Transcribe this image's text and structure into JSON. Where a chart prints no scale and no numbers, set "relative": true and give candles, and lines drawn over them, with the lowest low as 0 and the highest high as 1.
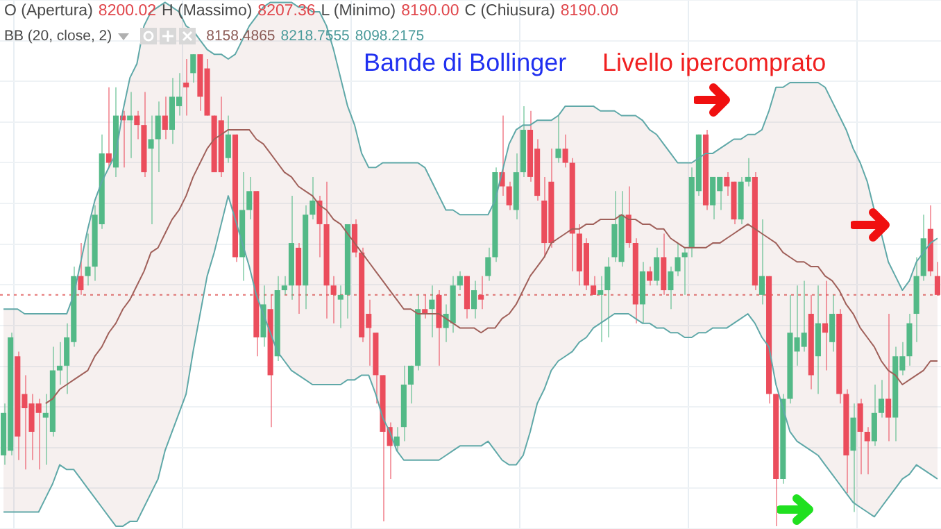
{
  "chart_data": {
    "type": "candlestick",
    "relative": true,
    "grid": true,
    "marker": "none",
    "categories": [
      null,
      null,
      null,
      null,
      null,
      null,
      null,
      null,
      null,
      null,
      null,
      null,
      null,
      null,
      null,
      null,
      null,
      null,
      null,
      null,
      null,
      null,
      null,
      null,
      null,
      null,
      null,
      null,
      null,
      null,
      null,
      null,
      null,
      null,
      null,
      null,
      null,
      null,
      null,
      null,
      null,
      null,
      null,
      null,
      null,
      null,
      null,
      null,
      null,
      null,
      null,
      null,
      null,
      null,
      null,
      null,
      null,
      null,
      null,
      null,
      null,
      null,
      null,
      null,
      null,
      null,
      null,
      null,
      null,
      null,
      null,
      null,
      null,
      null,
      null,
      null,
      null,
      null,
      null,
      null,
      null,
      null,
      null,
      null,
      null,
      null,
      null,
      null,
      null,
      null,
      null,
      null,
      null,
      null,
      null,
      null,
      null,
      null,
      null,
      null,
      null,
      null,
      null,
      null,
      null,
      null,
      null,
      null,
      null,
      null,
      null,
      null,
      null,
      null,
      null,
      null,
      null,
      null,
      null,
      null,
      null,
      null,
      null,
      null,
      null,
      null,
      null,
      null,
      null,
      null,
      null,
      null,
      null,
      null
    ],
    "ohlc": [
      [
        0.15,
        0.26,
        0.13,
        0.24
      ],
      [
        0.16,
        0.41,
        0.15,
        0.4
      ],
      [
        0.36,
        0.37,
        0.14,
        0.19
      ],
      [
        0.28,
        0.32,
        0.12,
        0.25
      ],
      [
        0.26,
        0.28,
        0.14,
        0.2
      ],
      [
        0.26,
        0.27,
        0.12,
        0.24
      ],
      [
        0.23,
        0.28,
        0.13,
        0.24
      ],
      [
        0.2,
        0.38,
        0.19,
        0.33
      ],
      [
        0.33,
        0.39,
        0.3,
        0.34
      ],
      [
        0.34,
        0.43,
        0.28,
        0.4
      ],
      [
        0.39,
        0.55,
        0.38,
        0.53
      ],
      [
        0.53,
        0.6,
        0.49,
        0.5
      ],
      [
        0.53,
        0.62,
        0.51,
        0.55
      ],
      [
        0.55,
        0.68,
        0.52,
        0.66
      ],
      [
        0.64,
        0.83,
        0.63,
        0.79
      ],
      [
        0.79,
        0.93,
        0.76,
        0.77
      ],
      [
        0.76,
        0.93,
        0.74,
        0.87
      ],
      [
        0.87,
        0.88,
        0.76,
        0.86
      ],
      [
        0.86,
        0.92,
        0.78,
        0.87
      ],
      [
        0.87,
        0.88,
        0.82,
        0.85
      ],
      [
        0.85,
        0.92,
        0.74,
        0.75
      ],
      [
        0.8,
        0.87,
        0.64,
        0.82
      ],
      [
        0.82,
        0.9,
        0.75,
        0.87
      ],
      [
        0.87,
        0.91,
        0.82,
        0.84
      ],
      [
        0.84,
        0.95,
        0.81,
        0.91
      ],
      [
        0.89,
        0.96,
        0.87,
        0.91
      ],
      [
        0.94,
        0.99,
        0.87,
        0.93
      ],
      [
        0.96,
        1.0,
        0.94,
        1.0
      ],
      [
        1.0,
        1.0,
        0.88,
        0.91
      ],
      [
        0.97,
        0.99,
        0.87,
        0.87
      ],
      [
        0.87,
        0.87,
        0.75,
        0.75
      ],
      [
        0.86,
        0.91,
        0.74,
        0.75
      ],
      [
        0.78,
        0.87,
        0.77,
        0.83
      ],
      [
        0.83,
        0.83,
        0.56,
        0.57
      ],
      [
        0.57,
        0.75,
        0.52,
        0.67
      ],
      [
        0.67,
        0.74,
        0.65,
        0.71
      ],
      [
        0.71,
        0.71,
        0.36,
        0.4
      ],
      [
        0.4,
        0.51,
        0.38,
        0.47
      ],
      [
        0.46,
        0.49,
        0.21,
        0.32
      ],
      [
        0.36,
        0.53,
        0.35,
        0.5
      ],
      [
        0.5,
        0.53,
        0.49,
        0.51
      ],
      [
        0.51,
        0.7,
        0.48,
        0.6
      ],
      [
        0.59,
        0.6,
        0.45,
        0.51
      ],
      [
        0.51,
        0.68,
        0.46,
        0.66
      ],
      [
        0.66,
        0.74,
        0.65,
        0.69
      ],
      [
        0.69,
        0.7,
        0.57,
        0.64
      ],
      [
        0.64,
        0.73,
        0.44,
        0.51
      ],
      [
        0.51,
        0.53,
        0.43,
        0.49
      ],
      [
        0.48,
        0.51,
        0.42,
        0.49
      ],
      [
        0.49,
        0.64,
        0.44,
        0.64
      ],
      [
        0.64,
        0.65,
        0.57,
        0.58
      ],
      [
        0.58,
        0.59,
        0.39,
        0.4
      ],
      [
        0.45,
        0.48,
        0.34,
        0.42
      ],
      [
        0.41,
        0.41,
        0.26,
        0.32
      ],
      [
        0.32,
        0.32,
        0.01,
        0.2
      ],
      [
        0.21,
        0.22,
        0.1,
        0.17
      ],
      [
        0.17,
        0.21,
        0.16,
        0.19
      ],
      [
        0.21,
        0.34,
        0.18,
        0.3
      ],
      [
        0.3,
        0.34,
        0.26,
        0.34
      ],
      [
        0.34,
        0.49,
        0.33,
        0.46
      ],
      [
        0.46,
        0.49,
        0.44,
        0.45
      ],
      [
        0.46,
        0.51,
        0.4,
        0.48
      ],
      [
        0.49,
        0.5,
        0.34,
        0.42
      ],
      [
        0.42,
        0.47,
        0.39,
        0.45
      ],
      [
        0.43,
        0.53,
        0.41,
        0.51
      ],
      [
        0.51,
        0.54,
        0.5,
        0.53
      ],
      [
        0.53,
        0.53,
        0.44,
        0.46
      ],
      [
        0.46,
        0.52,
        0.44,
        0.5
      ],
      [
        0.49,
        0.53,
        0.46,
        0.48
      ],
      [
        0.53,
        0.59,
        0.52,
        0.57
      ],
      [
        0.57,
        0.76,
        0.56,
        0.75
      ],
      [
        0.75,
        0.87,
        0.7,
        0.72
      ],
      [
        0.72,
        0.73,
        0.67,
        0.68
      ],
      [
        0.67,
        0.79,
        0.65,
        0.75
      ],
      [
        0.75,
        0.89,
        0.74,
        0.84
      ],
      [
        0.84,
        0.88,
        0.73,
        0.74
      ],
      [
        0.8,
        0.82,
        0.69,
        0.7
      ],
      [
        0.69,
        0.74,
        0.57,
        0.6
      ],
      [
        0.73,
        0.8,
        0.59,
        0.6
      ],
      [
        0.78,
        0.87,
        0.77,
        0.8
      ],
      [
        0.8,
        0.83,
        0.76,
        0.77
      ],
      [
        0.77,
        0.78,
        0.54,
        0.62
      ],
      [
        0.62,
        0.64,
        0.51,
        0.54
      ],
      [
        0.6,
        0.61,
        0.5,
        0.51
      ],
      [
        0.51,
        0.53,
        0.49,
        0.49
      ],
      [
        0.49,
        0.53,
        0.39,
        0.5
      ],
      [
        0.5,
        0.57,
        0.4,
        0.55
      ],
      [
        0.57,
        0.71,
        0.56,
        0.64
      ],
      [
        0.56,
        0.71,
        0.55,
        0.66
      ],
      [
        0.66,
        0.72,
        0.59,
        0.6
      ],
      [
        0.6,
        0.61,
        0.43,
        0.47
      ],
      [
        0.47,
        0.56,
        0.43,
        0.54
      ],
      [
        0.54,
        0.55,
        0.51,
        0.52
      ],
      [
        0.52,
        0.59,
        0.51,
        0.57
      ],
      [
        0.57,
        0.62,
        0.49,
        0.5
      ],
      [
        0.5,
        0.55,
        0.46,
        0.54
      ],
      [
        0.54,
        0.6,
        0.53,
        0.57
      ],
      [
        0.57,
        0.59,
        0.49,
        0.58
      ],
      [
        0.59,
        0.76,
        0.57,
        0.74
      ],
      [
        0.71,
        0.83,
        0.7,
        0.83
      ],
      [
        0.83,
        0.84,
        0.67,
        0.68
      ],
      [
        0.68,
        0.74,
        0.65,
        0.74
      ],
      [
        0.71,
        0.74,
        0.67,
        0.74
      ],
      [
        0.74,
        0.75,
        0.7,
        0.72
      ],
      [
        0.73,
        0.73,
        0.64,
        0.65
      ],
      [
        0.65,
        0.74,
        0.64,
        0.73
      ],
      [
        0.73,
        0.78,
        0.72,
        0.74
      ],
      [
        0.74,
        0.75,
        0.5,
        0.51
      ],
      [
        0.49,
        0.65,
        0.47,
        0.53
      ],
      [
        0.53,
        0.53,
        0.26,
        0.28
      ],
      [
        0.28,
        0.28,
        0.0,
        0.1
      ],
      [
        0.1,
        0.28,
        0.09,
        0.27
      ],
      [
        0.27,
        0.49,
        0.26,
        0.41
      ],
      [
        0.37,
        0.51,
        0.34,
        0.4
      ],
      [
        0.38,
        0.52,
        0.37,
        0.41
      ],
      [
        0.45,
        0.49,
        0.29,
        0.32
      ],
      [
        0.36,
        0.51,
        0.28,
        0.43
      ],
      [
        0.43,
        0.52,
        0.33,
        0.41
      ],
      [
        0.39,
        0.49,
        0.37,
        0.45
      ],
      [
        0.45,
        0.46,
        0.26,
        0.28
      ],
      [
        0.28,
        0.29,
        0.07,
        0.15
      ],
      [
        0.16,
        0.26,
        0.03,
        0.23
      ],
      [
        0.26,
        0.27,
        0.11,
        0.2
      ],
      [
        0.2,
        0.21,
        0.11,
        0.18
      ],
      [
        0.18,
        0.3,
        0.17,
        0.24
      ],
      [
        0.24,
        0.31,
        0.23,
        0.27
      ],
      [
        0.27,
        0.45,
        0.18,
        0.23
      ],
      [
        0.23,
        0.38,
        0.18,
        0.36
      ],
      [
        0.33,
        0.39,
        0.32,
        0.36
      ],
      [
        0.36,
        0.45,
        0.34,
        0.43
      ],
      [
        0.45,
        0.57,
        0.39,
        0.53
      ],
      [
        0.53,
        0.66,
        0.52,
        0.61
      ],
      [
        0.63,
        0.68,
        0.53,
        0.54
      ],
      [
        0.53,
        0.56,
        0.49,
        0.49
      ]
    ],
    "colors": [
      "#53b987",
      "#53b987",
      "#eb4d5c",
      "#eb4d5c",
      "#eb4d5c",
      "#eb4d5c",
      "#53b987",
      "#53b987",
      "#53b987",
      "#53b987",
      "#53b987",
      "#eb4d5c",
      "#53b987",
      "#53b987",
      "#53b987",
      "#eb4d5c",
      "#53b987",
      "#eb4d5c",
      "#53b987",
      "#eb4d5c",
      "#eb4d5c",
      "#53b987",
      "#53b987",
      "#eb4d5c",
      "#53b987",
      "#53b987",
      "#eb4d5c",
      "#53b987",
      "#eb4d5c",
      "#eb4d5c",
      "#eb4d5c",
      "#eb4d5c",
      "#53b987",
      "#eb4d5c",
      "#53b987",
      "#53b987",
      "#eb4d5c",
      "#53b987",
      "#eb4d5c",
      "#53b987",
      "#53b987",
      "#53b987",
      "#eb4d5c",
      "#53b987",
      "#53b987",
      "#eb4d5c",
      "#eb4d5c",
      "#eb4d5c",
      "#53b987",
      "#53b987",
      "#eb4d5c",
      "#eb4d5c",
      "#eb4d5c",
      "#eb4d5c",
      "#eb4d5c",
      "#eb4d5c",
      "#53b987",
      "#53b987",
      "#53b987",
      "#53b987",
      "#eb4d5c",
      "#53b987",
      "#eb4d5c",
      "#53b987",
      "#53b987",
      "#53b987",
      "#eb4d5c",
      "#53b987",
      "#eb4d5c",
      "#53b987",
      "#53b987",
      "#eb4d5c",
      "#eb4d5c",
      "#53b987",
      "#53b987",
      "#eb4d5c",
      "#eb4d5c",
      "#eb4d5c",
      "#eb4d5c",
      "#53b987",
      "#eb4d5c",
      "#eb4d5c",
      "#eb4d5c",
      "#eb4d5c",
      "#eb4d5c",
      "#53b987",
      "#53b987",
      "#53b987",
      "#53b987",
      "#eb4d5c",
      "#eb4d5c",
      "#53b987",
      "#eb4d5c",
      "#53b987",
      "#eb4d5c",
      "#53b987",
      "#53b987",
      "#53b987",
      "#53b987",
      "#53b987",
      "#eb4d5c",
      "#53b987",
      "#53b987",
      "#eb4d5c",
      "#eb4d5c",
      "#53b987",
      "#53b987",
      "#eb4d5c",
      "#53b987",
      "#eb4d5c",
      "#eb4d5c",
      "#53b987",
      "#53b987",
      "#53b987",
      "#53b987",
      "#eb4d5c",
      "#53b987",
      "#eb4d5c",
      "#53b987",
      "#eb4d5c",
      "#eb4d5c",
      "#53b987",
      "#eb4d5c",
      "#eb4d5c",
      "#53b987",
      "#53b987",
      "#eb4d5c",
      "#53b987",
      "#53b987",
      "#53b987",
      "#53b987",
      "#53b987",
      "#eb4d5c",
      "#eb4d5c"
    ],
    "series": [
      {
        "type": "line",
        "color": "#a0605a",
        "values": [
          null,
          null,
          null,
          null,
          null,
          null,
          0.26,
          0.27,
          0.29,
          0.3,
          0.31,
          0.32,
          0.33,
          0.36,
          0.38,
          0.41,
          0.43,
          0.46,
          0.48,
          0.51,
          0.54,
          0.58,
          0.59,
          0.62,
          0.65,
          0.67,
          0.7,
          0.74,
          0.77,
          0.8,
          0.82,
          0.83,
          0.84,
          0.84,
          0.84,
          0.84,
          0.82,
          0.81,
          0.79,
          0.77,
          0.75,
          0.74,
          0.72,
          0.71,
          0.7,
          0.68,
          0.67,
          0.65,
          0.64,
          0.62,
          0.6,
          0.58,
          0.56,
          0.54,
          0.52,
          0.5,
          0.48,
          0.46,
          0.46,
          0.45,
          0.45,
          0.45,
          0.45,
          0.44,
          0.43,
          0.42,
          0.42,
          0.42,
          0.41,
          0.42,
          0.42,
          0.44,
          0.45,
          0.47,
          0.5,
          0.53,
          0.55,
          0.57,
          0.6,
          0.61,
          0.62,
          0.63,
          0.63,
          0.64,
          0.64,
          0.65,
          0.65,
          0.65,
          0.66,
          0.65,
          0.65,
          0.64,
          0.64,
          0.63,
          0.63,
          0.61,
          0.6,
          0.59,
          0.59,
          0.59,
          0.59,
          0.6,
          0.6,
          0.61,
          0.62,
          0.63,
          0.64,
          0.63,
          0.62,
          0.61,
          0.6,
          0.58,
          0.57,
          0.56,
          0.56,
          0.55,
          0.55,
          0.53,
          0.52,
          0.5,
          0.47,
          0.45,
          0.42,
          0.4,
          0.38,
          0.35,
          0.33,
          0.32,
          0.3,
          0.31,
          0.32,
          0.33,
          0.35,
          0.35
        ],
        "lower": [
          0.03,
          0.03,
          0.03,
          0.03,
          0.03,
          0.03,
          0.06,
          0.09,
          0.13,
          0.12,
          0.12,
          0.1,
          0.08,
          0.06,
          0.04,
          0.02,
          0.0,
          0.0,
          0.01,
          0.01,
          0.04,
          0.07,
          0.1,
          0.16,
          0.2,
          0.24,
          0.28,
          0.37,
          0.45,
          0.53,
          0.58,
          0.64,
          0.7,
          0.65,
          0.6,
          0.55,
          0.49,
          0.45,
          0.41,
          0.37,
          0.35,
          0.33,
          0.32,
          0.31,
          0.3,
          0.3,
          0.3,
          0.3,
          0.3,
          0.31,
          0.31,
          0.32,
          0.32,
          0.28,
          0.23,
          0.2,
          0.16,
          0.14,
          0.14,
          0.14,
          0.14,
          0.14,
          0.14,
          0.15,
          0.16,
          0.17,
          0.17,
          0.17,
          0.17,
          0.18,
          0.16,
          0.14,
          0.13,
          0.13,
          0.15,
          0.2,
          0.26,
          0.29,
          0.33,
          0.35,
          0.36,
          0.37,
          0.39,
          0.4,
          0.42,
          0.43,
          0.44,
          0.45,
          0.45,
          0.45,
          0.44,
          0.43,
          0.43,
          0.42,
          0.42,
          0.41,
          0.41,
          0.4,
          0.4,
          0.41,
          0.41,
          0.42,
          0.42,
          0.42,
          0.43,
          0.44,
          0.45,
          0.43,
          0.4,
          0.38,
          0.3,
          0.25,
          0.2,
          0.18,
          0.17,
          0.16,
          0.15,
          0.13,
          0.11,
          0.09,
          0.07,
          0.05,
          0.04,
          0.03,
          0.02,
          0.04,
          0.06,
          0.08,
          0.1,
          0.11,
          0.13,
          0.12,
          0.11,
          0.1
        ],
        "upper": [
          0.46,
          0.46,
          0.46,
          0.45,
          0.45,
          0.45,
          0.45,
          0.45,
          0.45,
          0.45,
          0.49,
          0.56,
          0.63,
          0.69,
          0.73,
          0.76,
          0.79,
          0.88,
          0.95,
          0.98,
          1.06,
          1.09,
          1.1,
          1.11,
          1.1,
          1.09,
          1.06,
          1.05,
          1.03,
          1.01,
          1.0,
          1.0,
          0.99,
          1.0,
          1.03,
          1.06,
          1.08,
          1.1,
          1.11,
          1.11,
          1.11,
          1.11,
          1.1,
          1.1,
          1.09,
          1.09,
          1.06,
          1.01,
          0.95,
          0.89,
          0.85,
          0.79,
          0.76,
          0.76,
          0.77,
          0.77,
          0.77,
          0.77,
          0.77,
          0.77,
          0.76,
          0.73,
          0.7,
          0.67,
          0.67,
          0.66,
          0.66,
          0.66,
          0.66,
          0.66,
          0.69,
          0.75,
          0.81,
          0.84,
          0.85,
          0.85,
          0.86,
          0.86,
          0.86,
          0.87,
          0.89,
          0.89,
          0.89,
          0.89,
          0.89,
          0.88,
          0.88,
          0.88,
          0.87,
          0.87,
          0.87,
          0.86,
          0.84,
          0.83,
          0.81,
          0.79,
          0.77,
          0.77,
          0.77,
          0.78,
          0.79,
          0.79,
          0.8,
          0.81,
          0.82,
          0.82,
          0.83,
          0.83,
          0.84,
          0.88,
          0.93,
          0.93,
          0.94,
          0.94,
          0.94,
          0.94,
          0.94,
          0.93,
          0.9,
          0.87,
          0.84,
          0.8,
          0.77,
          0.73,
          0.67,
          0.62,
          0.56,
          0.53,
          0.5,
          0.52,
          0.56,
          0.58,
          0.6,
          0.61
        ]
      },
      {
        "type": "line",
        "color": "#5fa8a8",
        "values": [
          0.03,
          0.03,
          0.03,
          0.03,
          0.03,
          0.03,
          0.06,
          0.09,
          0.13,
          0.12,
          0.12,
          0.1,
          0.08,
          0.06,
          0.04,
          0.02,
          0.0,
          0.0,
          0.01,
          0.01,
          0.04,
          0.07,
          0.1,
          0.16,
          0.2,
          0.24,
          0.28,
          0.37,
          0.45,
          0.53,
          0.58,
          0.64,
          0.7,
          0.65,
          0.6,
          0.55,
          0.49,
          0.45,
          0.41,
          0.37,
          0.35,
          0.33,
          0.32,
          0.31,
          0.3,
          0.3,
          0.3,
          0.3,
          0.3,
          0.31,
          0.31,
          0.32,
          0.32,
          0.28,
          0.23,
          0.2,
          0.16,
          0.14,
          0.14,
          0.14,
          0.14,
          0.14,
          0.14,
          0.15,
          0.16,
          0.17,
          0.17,
          0.17,
          0.17,
          0.18,
          0.16,
          0.14,
          0.13,
          0.13,
          0.15,
          0.2,
          0.26,
          0.29,
          0.33,
          0.35,
          0.36,
          0.37,
          0.39,
          0.4,
          0.42,
          0.43,
          0.44,
          0.45,
          0.45,
          0.45,
          0.44,
          0.43,
          0.43,
          0.42,
          0.42,
          0.41,
          0.41,
          0.4,
          0.4,
          0.41,
          0.41,
          0.42,
          0.42,
          0.42,
          0.43,
          0.44,
          0.45,
          0.43,
          0.4,
          0.38,
          0.3,
          0.25,
          0.2,
          0.18,
          0.17,
          0.16,
          0.15,
          0.13,
          0.11,
          0.09,
          0.07,
          0.05,
          0.04,
          0.03,
          0.02,
          0.04,
          0.06,
          0.08,
          0.1,
          0.11,
          0.13,
          0.12,
          0.11,
          0.1
        ]
      },
      {
        "type": "line",
        "color": "#5fa8a8",
        "values": [
          0.46,
          0.46,
          0.46,
          0.45,
          0.45,
          0.45,
          0.45,
          0.45,
          0.45,
          0.45,
          0.49,
          0.56,
          0.63,
          0.69,
          0.73,
          0.76,
          0.79,
          0.88,
          0.95,
          0.98,
          1.06,
          1.09,
          1.1,
          1.11,
          1.1,
          1.09,
          1.06,
          1.05,
          1.03,
          1.01,
          1.0,
          1.0,
          0.99,
          1.0,
          1.03,
          1.06,
          1.08,
          1.1,
          1.11,
          1.11,
          1.11,
          1.11,
          1.1,
          1.1,
          1.09,
          1.09,
          1.06,
          1.01,
          0.95,
          0.89,
          0.85,
          0.79,
          0.76,
          0.76,
          0.77,
          0.77,
          0.77,
          0.77,
          0.77,
          0.77,
          0.76,
          0.73,
          0.7,
          0.67,
          0.67,
          0.66,
          0.66,
          0.66,
          0.66,
          0.66,
          0.69,
          0.75,
          0.81,
          0.84,
          0.85,
          0.85,
          0.86,
          0.86,
          0.86,
          0.87,
          0.89,
          0.89,
          0.89,
          0.89,
          0.89,
          0.88,
          0.88,
          0.88,
          0.87,
          0.87,
          0.87,
          0.86,
          0.84,
          0.83,
          0.81,
          0.79,
          0.77,
          0.77,
          0.77,
          0.78,
          0.79,
          0.79,
          0.8,
          0.81,
          0.82,
          0.82,
          0.83,
          0.83,
          0.84,
          0.88,
          0.93,
          0.93,
          0.94,
          0.94,
          0.94,
          0.94,
          0.94,
          0.93,
          0.9,
          0.87,
          0.84,
          0.8,
          0.77,
          0.73,
          0.67,
          0.62,
          0.56,
          0.53,
          0.5,
          0.52,
          0.56,
          0.58,
          0.6,
          0.61
        ]
      }
    ],
    "ref_lines": [
      {
        "axis": "y",
        "value": 0.49,
        "color": "#e57373",
        "line_style": "dotted"
      }
    ],
    "annotations": [
      "O (Apertura)",
      "8200.02",
      "H (Massimo)",
      "8207.36",
      "L (Minimo)",
      "8190.00",
      "C (Chiusura)",
      "8190.00",
      "BB (20, close, 2)",
      "8158.4865",
      "8218.7555",
      "8098.2175",
      "Bande di Bollinger",
      "Livello ipercomprato"
    ]
  }
}
